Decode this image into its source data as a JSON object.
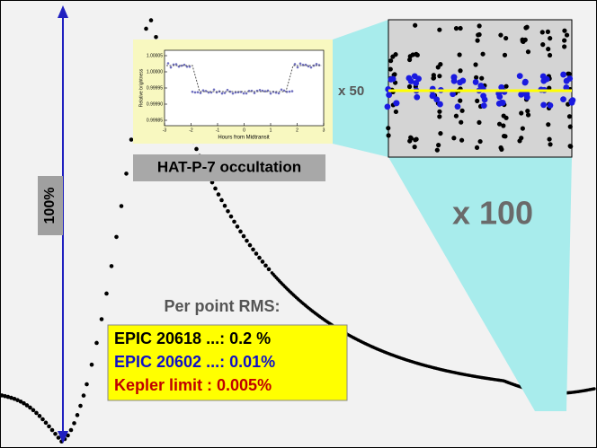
{
  "slide": {
    "scale_label": "100%",
    "inset": {
      "y_axis_label": "Relative brightness",
      "x_axis_label": "Hours from Midtransit",
      "y_ticks": [
        "1.00005",
        "1.00000",
        "0.99995",
        "0.99990",
        "0.99985"
      ],
      "x_ticks": [
        "-3",
        "-2",
        "-1",
        "0",
        "1",
        "2",
        "3"
      ]
    },
    "inset_caption": "HAT-P-7 occultation",
    "zoom_small": "x 50",
    "zoom_large": "x 100",
    "rms_heading": "Per point RMS:",
    "rms_rows": [
      {
        "text": "EPIC 20618 ...: 0.2 %",
        "color": "#000000"
      },
      {
        "text": "EPIC 20602 ...: 0.01%",
        "color": "#1010c8"
      },
      {
        "text": "Kepler limit    : 0.005%",
        "color": "#c00000"
      }
    ]
  }
}
